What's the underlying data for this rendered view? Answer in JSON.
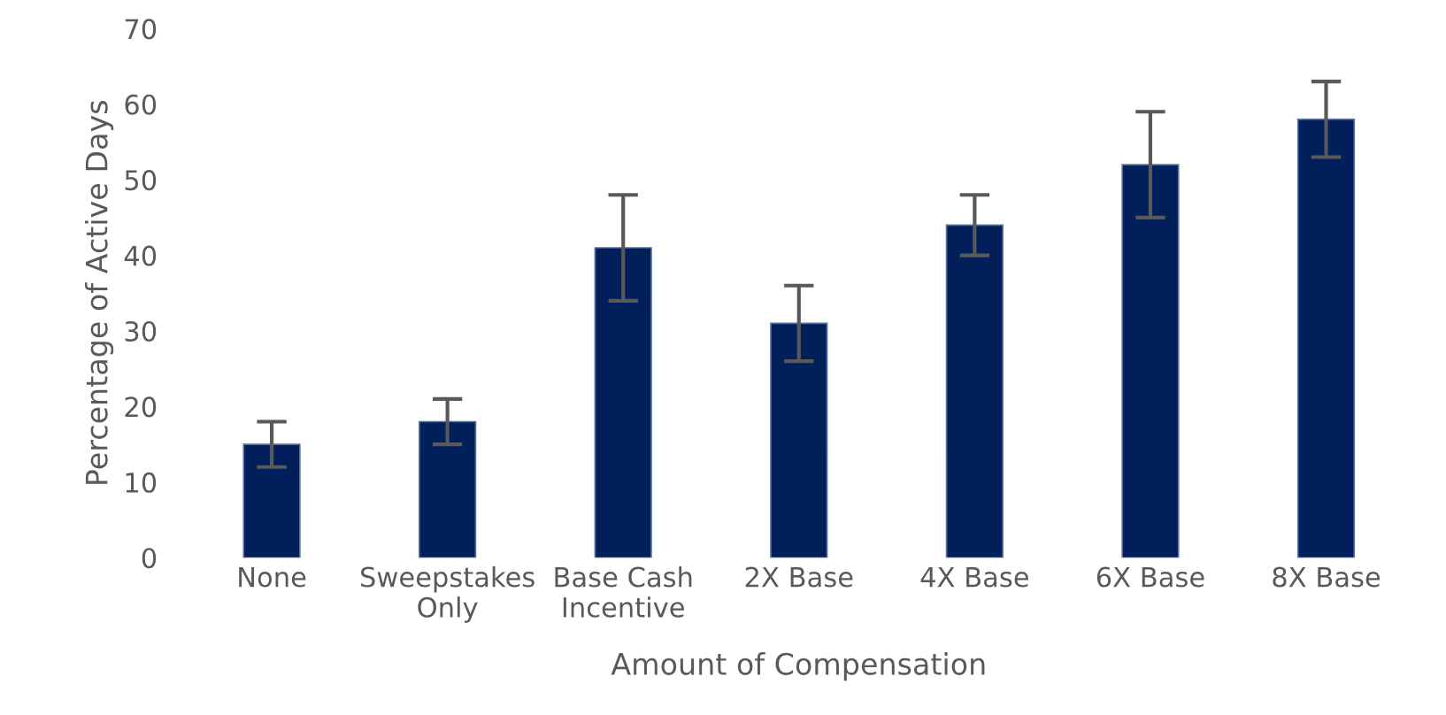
{
  "chart_data": {
    "type": "bar",
    "xlabel": "Amount of Compensation",
    "ylabel": "Percentage of Active Days",
    "categories": [
      "None",
      "Sweepstakes\nOnly",
      "Base Cash\nIncentive",
      "2X Base",
      "4X Base",
      "6X Base",
      "8X Base"
    ],
    "values": [
      15,
      18,
      41,
      31,
      44,
      52,
      58
    ],
    "errors": [
      [
        12,
        18
      ],
      [
        15,
        21
      ],
      [
        34,
        48
      ],
      [
        26,
        36
      ],
      [
        40,
        48
      ],
      [
        45,
        59
      ],
      [
        53,
        63
      ]
    ],
    "color": "#001f5b",
    "ylim": [
      0,
      70
    ],
    "yticks": [
      0,
      10,
      20,
      30,
      40,
      50,
      60,
      70
    ],
    "grid": false,
    "legend": false
  }
}
